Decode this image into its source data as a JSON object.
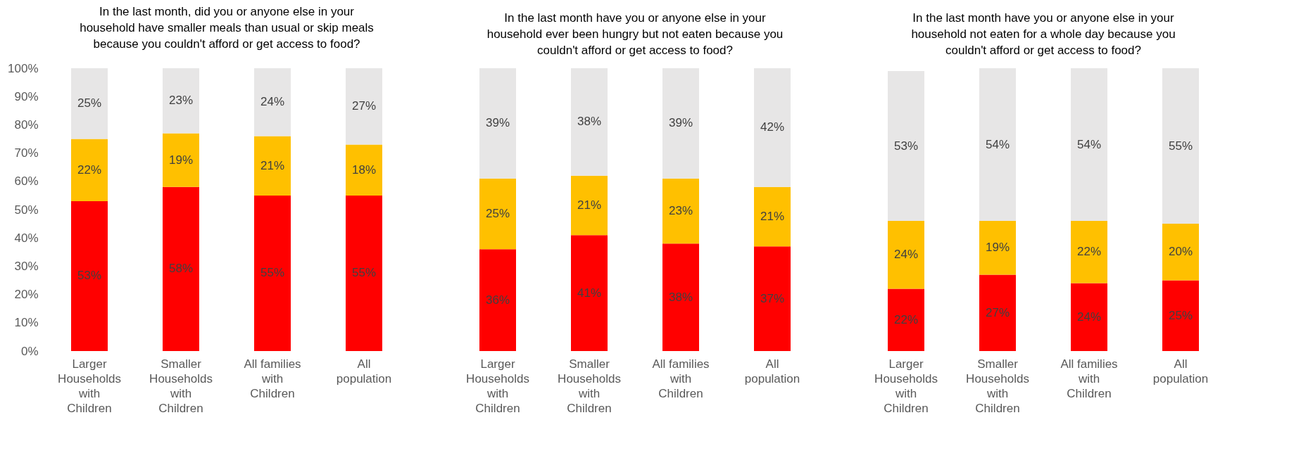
{
  "chart_data": [
    {
      "type": "bar",
      "stacked": true,
      "title": "In the last month, did you or anyone else in your household have smaller meals than usual or skip meals because you couldn't afford or get access to food?",
      "categories": [
        "Larger Households with Children",
        "Smaller Households with Children",
        "All families with Children",
        "All population"
      ],
      "ylim": [
        0,
        100
      ],
      "yticks": [
        {
          "value": 0,
          "label": "0%"
        },
        {
          "value": 10,
          "label": "10%"
        },
        {
          "value": 20,
          "label": "20%"
        },
        {
          "value": 30,
          "label": "30%"
        },
        {
          "value": 40,
          "label": "40%"
        },
        {
          "value": 50,
          "label": "50%"
        },
        {
          "value": 60,
          "label": "60%"
        },
        {
          "value": 70,
          "label": "70%"
        },
        {
          "value": 80,
          "label": "80%"
        },
        {
          "value": 90,
          "label": "90%"
        },
        {
          "value": 100,
          "label": "100%"
        }
      ],
      "series": [
        {
          "color": "#ff0000",
          "values": [
            53,
            58,
            55,
            55
          ],
          "value_labels": [
            "53%",
            "58%",
            "55%",
            "55%"
          ]
        },
        {
          "color": "#ffc000",
          "values": [
            22,
            19,
            21,
            18
          ],
          "value_labels": [
            "22%",
            "19%",
            "21%",
            "18%"
          ]
        },
        {
          "color": "#e7e6e6",
          "values": [
            25,
            23,
            24,
            27
          ],
          "value_labels": [
            "25%",
            "23%",
            "24%",
            "27%"
          ]
        }
      ]
    },
    {
      "type": "bar",
      "stacked": true,
      "tick_labels": "x",
      "title": "In the last month have you or anyone else in your household ever been hungry but not eaten because you couldn't afford or get access to food?",
      "categories": [
        "Larger Households with Children",
        "Smaller Households with Children",
        "All families with Children",
        "All population"
      ],
      "ylim": [
        0,
        100
      ],
      "series": [
        {
          "color": "#ff0000",
          "values": [
            36,
            41,
            38,
            37
          ],
          "value_labels": [
            "36%",
            "41%",
            "38%",
            "37%"
          ]
        },
        {
          "color": "#ffc000",
          "values": [
            25,
            21,
            23,
            21
          ],
          "value_labels": [
            "25%",
            "21%",
            "23%",
            "21%"
          ]
        },
        {
          "color": "#e7e6e6",
          "values": [
            39,
            38,
            39,
            42
          ],
          "value_labels": [
            "39%",
            "38%",
            "39%",
            "42%"
          ]
        }
      ]
    },
    {
      "type": "bar",
      "stacked": true,
      "tick_labels": "x",
      "title": "In the last month have you or anyone else in your household not eaten for a whole day because you couldn't afford or get access to food?",
      "categories": [
        "Larger Households with Children",
        "Smaller Households with Children",
        "All families with Children",
        "All population"
      ],
      "ylim": [
        0,
        100
      ],
      "series": [
        {
          "color": "#ff0000",
          "values": [
            22,
            27,
            24,
            25
          ],
          "value_labels": [
            "22%",
            "27%",
            "24%",
            "25%"
          ]
        },
        {
          "color": "#ffc000",
          "values": [
            24,
            19,
            22,
            20
          ],
          "value_labels": [
            "24%",
            "19%",
            "22%",
            "20%"
          ]
        },
        {
          "color": "#e7e6e6",
          "values": [
            53,
            54,
            54,
            55
          ],
          "value_labels": [
            "53%",
            "54%",
            "54%",
            "55%"
          ]
        }
      ]
    }
  ]
}
